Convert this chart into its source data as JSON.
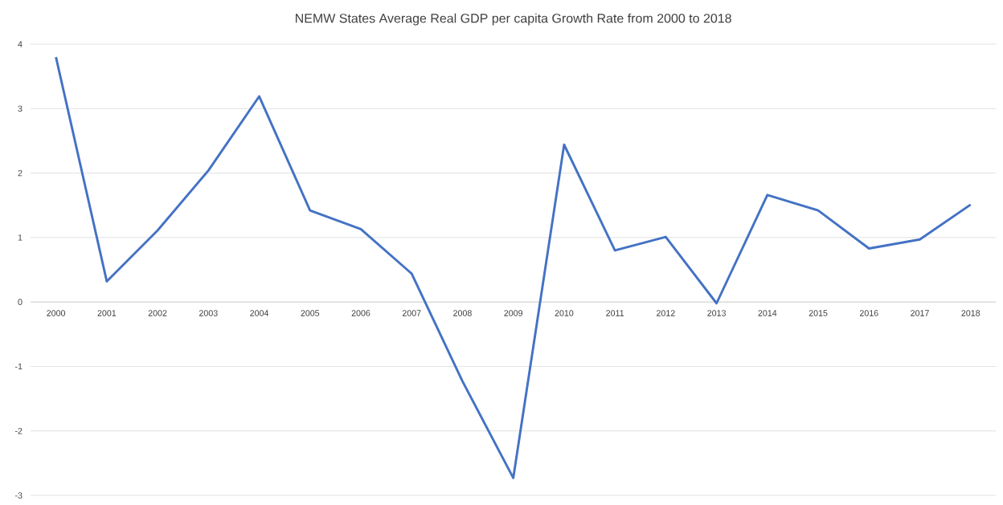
{
  "chart_data": {
    "type": "line",
    "title": "NEMW States Average Real GDP per capita Growth Rate from 2000 to 2018",
    "categories": [
      "2000",
      "2001",
      "2002",
      "2003",
      "2004",
      "2005",
      "2006",
      "2007",
      "2008",
      "2009",
      "2010",
      "2011",
      "2012",
      "2013",
      "2014",
      "2015",
      "2016",
      "2017",
      "2018"
    ],
    "series": [
      {
        "color": "#4472c4",
        "values": [
          3.8,
          0.32,
          1.11,
          2.04,
          3.19,
          1.42,
          1.13,
          0.44,
          -1.23,
          -2.73,
          2.44,
          0.8,
          1.01,
          -0.02,
          1.66,
          1.42,
          0.83,
          0.97,
          1.51
        ]
      }
    ],
    "ylim": [
      -3,
      4
    ],
    "yticks": [
      -3,
      -2,
      -1,
      0,
      1,
      2,
      3,
      4
    ],
    "grid": "y",
    "marker": "none",
    "line_style": "solid"
  }
}
